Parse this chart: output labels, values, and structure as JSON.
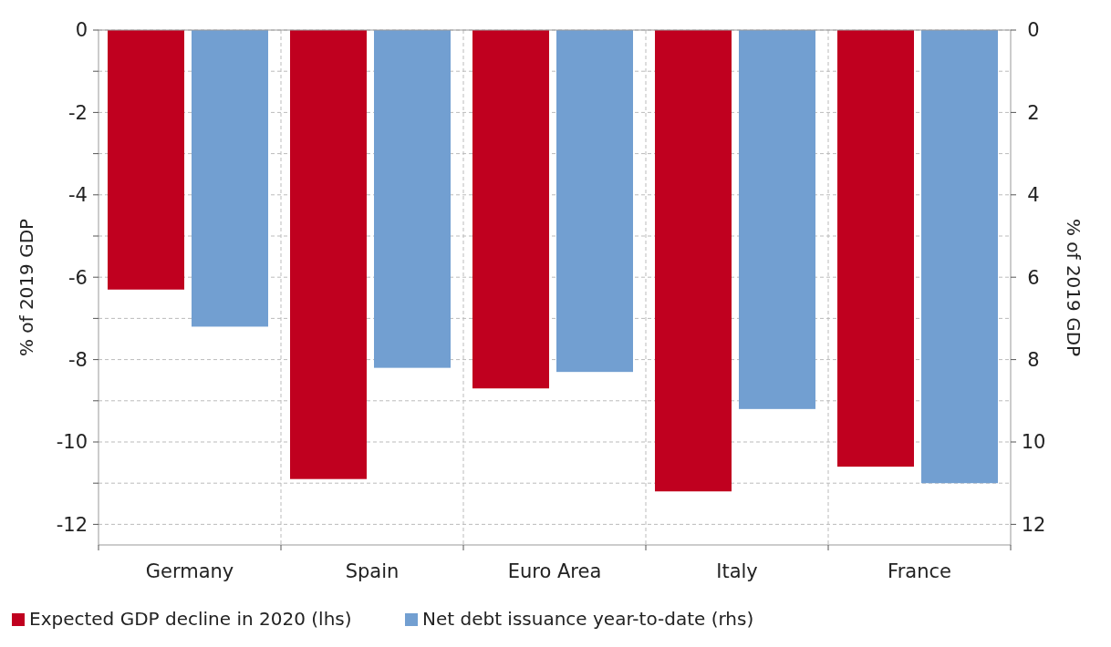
{
  "chart_data": {
    "type": "bar",
    "categories": [
      "Germany",
      "Spain",
      "Euro Area",
      "Italy",
      "France"
    ],
    "ylabel": "% of 2019 GDP",
    "y2label": "% of 2019 GDP",
    "series": [
      {
        "name": "Expected GDP decline in 2020 (lhs)",
        "color": "#c0001f",
        "values": [
          -6.3,
          -10.9,
          -8.7,
          -11.2,
          -10.6
        ]
      },
      {
        "name": "Net debt issuance year-to-date (rhs)",
        "color": "#729fd1",
        "axis": "y2",
        "values": [
          7.2,
          8.2,
          8.3,
          9.2,
          11.0
        ]
      }
    ],
    "ylim": [
      -12.5,
      0
    ],
    "yticks": [
      0,
      {
        "value": -1,
        "label": null
      },
      -2,
      {
        "value": -3,
        "label": null
      },
      -4,
      {
        "value": -5,
        "label": null
      },
      -6,
      {
        "value": -7,
        "label": null
      },
      -8,
      {
        "value": -9,
        "label": null
      },
      -10,
      {
        "value": -11,
        "label": null
      },
      -12
    ],
    "y2lim": [
      12.5,
      0
    ],
    "y2ticks": [
      0,
      2,
      4,
      6,
      8,
      10,
      12
    ],
    "grid": true,
    "legend": "bottom left"
  }
}
